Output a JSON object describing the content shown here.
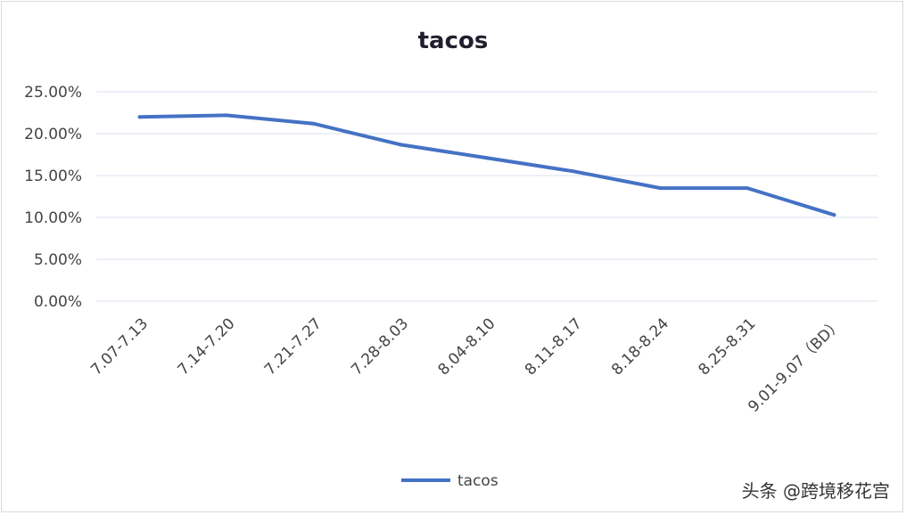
{
  "chart_data": {
    "type": "line",
    "title": "tacos",
    "categories": [
      "7.07-7.13",
      "7.14-7.20",
      "7.21-7.27",
      "7.28-8.03",
      "8.04-8.10",
      "8.11-8.17",
      "8.18-8.24",
      "8.25-8.31",
      "9.01-9.07（BD）"
    ],
    "series": [
      {
        "name": "tacos",
        "values": [
          22.0,
          22.2,
          21.2,
          18.7,
          17.1,
          15.5,
          13.5,
          13.5,
          10.3
        ]
      }
    ],
    "y_ticks": [
      "0.00%",
      "5.00%",
      "10.00%",
      "15.00%",
      "20.00%",
      "25.00%"
    ],
    "ylim": [
      0,
      25
    ],
    "grid": true,
    "legend_position": "bottom",
    "colors": {
      "series": "#4472c4",
      "grid": "#d9e1ec"
    }
  },
  "watermark": "头条 @跨境移花宫"
}
